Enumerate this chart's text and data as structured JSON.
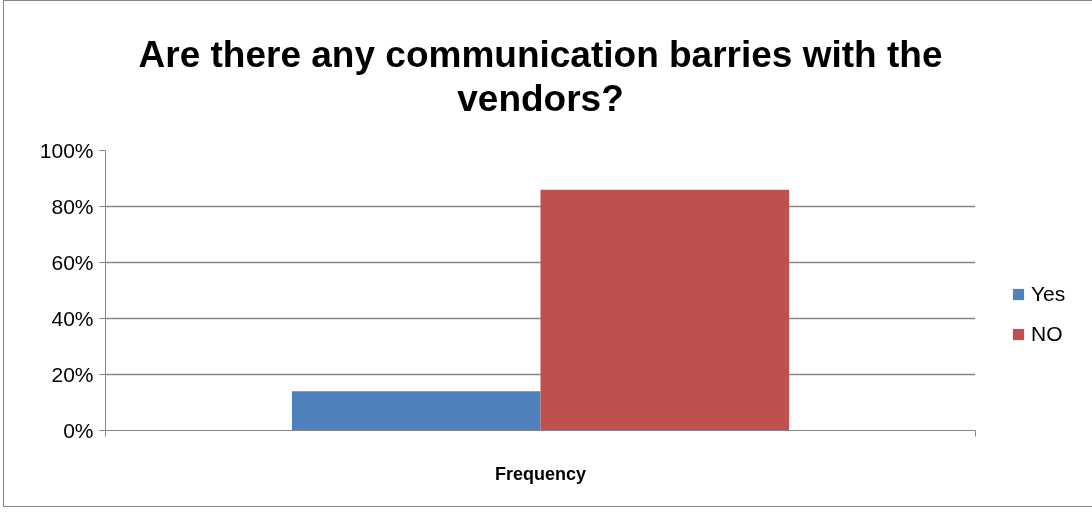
{
  "chart_data": {
    "type": "bar",
    "title": "Are there any communication barries with the vendors?",
    "xlabel": "Frequency",
    "categories": [
      null
    ],
    "series": [
      {
        "name": "Yes",
        "color": "#4f81bd",
        "values": [
          14
        ]
      },
      {
        "name": "NO",
        "color": "#c0504d",
        "values": [
          86
        ]
      }
    ],
    "ylim": [
      0,
      100
    ],
    "yticks": [
      {
        "value": 0,
        "label": "0%"
      },
      {
        "value": 20,
        "label": "20%"
      },
      {
        "value": 40,
        "label": "40%"
      },
      {
        "value": 60,
        "label": "60%"
      },
      {
        "value": 80,
        "label": "80%"
      },
      {
        "value": 100,
        "label": "100%"
      }
    ],
    "grid": "y",
    "legend": "right"
  }
}
